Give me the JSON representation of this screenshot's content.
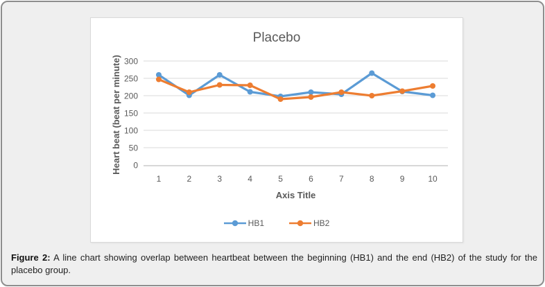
{
  "figure": {
    "caption_label": "Figure 2:",
    "caption_text": " A line chart showing overlap between heartbeat between the beginning (HB1) and the end (HB2) of the study for the placebo group."
  },
  "chart_data": {
    "type": "line",
    "title": "Placebo",
    "xlabel": "Axis Title",
    "ylabel": "Heart beat (beat per minute)",
    "categories": [
      "1",
      "2",
      "3",
      "4",
      "5",
      "6",
      "7",
      "8",
      "9",
      "10"
    ],
    "series": [
      {
        "name": "HB1",
        "color": "#5B9BD5",
        "values": [
          260,
          201,
          260,
          211,
          198,
          210,
          204,
          265,
          212,
          201
        ]
      },
      {
        "name": "HB2",
        "color": "#ED7D31",
        "values": [
          247,
          210,
          231,
          230,
          190,
          196,
          210,
          200,
          213,
          228
        ]
      }
    ],
    "ylim": [
      0,
      300
    ],
    "yticks": [
      0,
      50,
      100,
      150,
      200,
      250,
      300
    ],
    "grid": true,
    "legend_position": "bottom",
    "colors": {
      "axis_text": "#595959",
      "gridline": "#d9d9d9",
      "axis_line": "#bfbfbf"
    }
  }
}
